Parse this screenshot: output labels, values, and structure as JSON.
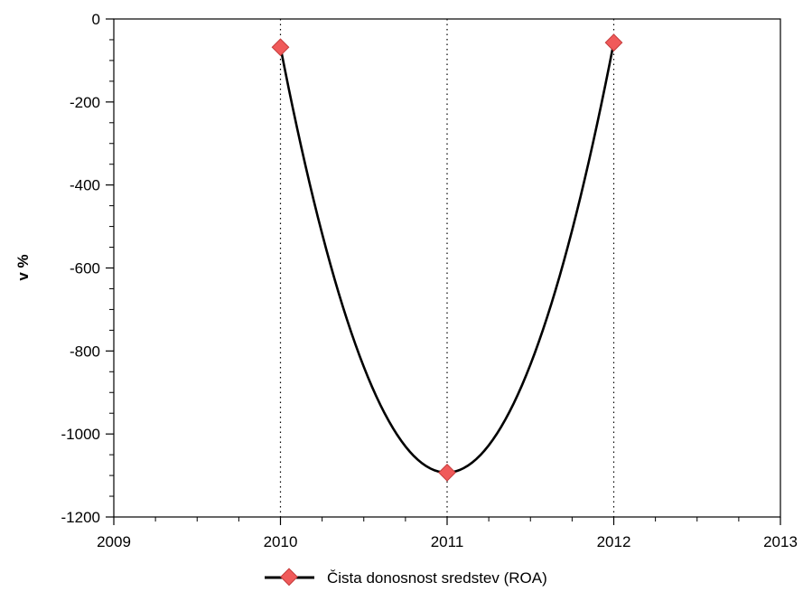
{
  "chart_data": {
    "type": "line",
    "title": "",
    "xlabel": "",
    "ylabel": "v %",
    "xlim": [
      2009,
      2013
    ],
    "ylim": [
      -1200,
      0
    ],
    "x_ticks": [
      2009,
      2010,
      2011,
      2012,
      2013
    ],
    "y_ticks": [
      0,
      -200,
      -400,
      -600,
      -800,
      -1000,
      -1200
    ],
    "grid": "vertical dotted at data points",
    "legend_position": "bottom-center",
    "series": [
      {
        "name": "Čista donosnost sredstev (ROA)",
        "x": [
          2010,
          2011,
          2012
        ],
        "y": [
          -68,
          -1093,
          -57
        ],
        "line_color": "#000000",
        "marker": "diamond",
        "marker_color": "#f05a5a"
      }
    ]
  }
}
